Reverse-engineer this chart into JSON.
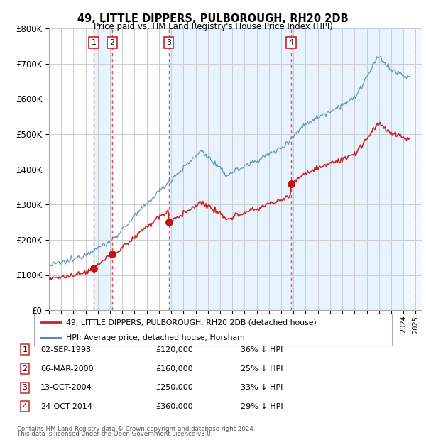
{
  "title": "49, LITTLE DIPPERS, PULBOROUGH, RH20 2DB",
  "subtitle": "Price paid vs. HM Land Registry's House Price Index (HPI)",
  "footer1": "Contains HM Land Registry data © Crown copyright and database right 2024.",
  "footer2": "This data is licensed under the Open Government Licence v3.0.",
  "legend_line1": "49, LITTLE DIPPERS, PULBOROUGH, RH20 2DB (detached house)",
  "legend_line2": "HPI: Average price, detached house, Horsham",
  "transactions": [
    {
      "label": "1",
      "date": "02-SEP-1998",
      "price": 120000,
      "pct": "36% ↓ HPI",
      "year": 1998.67
    },
    {
      "label": "2",
      "date": "06-MAR-2000",
      "price": 160000,
      "pct": "25% ↓ HPI",
      "year": 2000.17
    },
    {
      "label": "3",
      "date": "13-OCT-2004",
      "price": 250000,
      "pct": "33% ↓ HPI",
      "year": 2004.79
    },
    {
      "label": "4",
      "date": "24-OCT-2014",
      "price": 360000,
      "pct": "29% ↓ HPI",
      "year": 2014.81
    }
  ],
  "hpi_color": "#5588bb",
  "price_color": "#cc2222",
  "vline_color": "#dd3333",
  "dot_color": "#cc1111",
  "background_color": "#ffffff",
  "grid_color": "#cccccc",
  "shade_color": "#ddeeff",
  "ylim": [
    0,
    800000
  ],
  "yticks": [
    0,
    100000,
    200000,
    300000,
    400000,
    500000,
    600000,
    700000,
    800000
  ],
  "xmin": 1995.0,
  "xmax": 2025.0,
  "hatch_start": 2024.0,
  "hatch_color": "#bbccdd"
}
